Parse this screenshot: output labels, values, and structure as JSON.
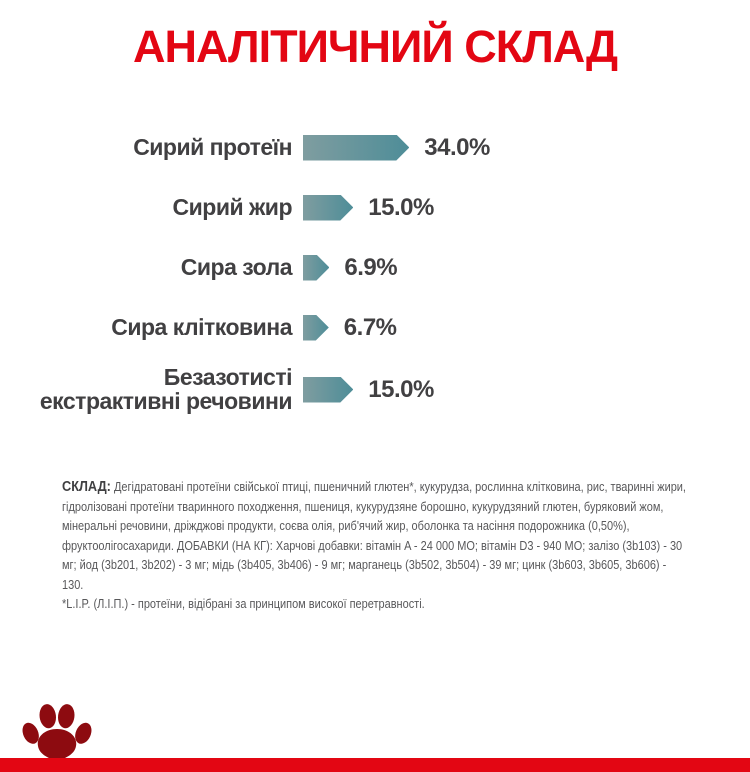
{
  "page": {
    "background": "#ffffff",
    "accent_red": "#e30613",
    "bar_gradient_start": "#7f9da0",
    "bar_gradient_end": "#4e8d98",
    "paw_color": "#8d0b10",
    "text_dark": "#414042",
    "text_gray": "#58585a"
  },
  "title": "АНАЛІТИЧНИЙ СКЛАД",
  "chart_data": {
    "type": "bar",
    "orientation": "horizontal",
    "title": "АНАЛІТИЧНИЙ СКЛАД",
    "xlabel": "",
    "ylabel": "",
    "unit": "%",
    "grid": false,
    "legend": "none",
    "categories": [
      "Сирий протеїн",
      "Сирий жир",
      "Сира зола",
      "Сира клітковина",
      "Безазотисті\nекстрактивні речовини"
    ],
    "values": [
      34.0,
      15.0,
      6.9,
      6.7,
      15.0
    ],
    "value_labels": [
      "34.0%",
      "15.0%",
      "6.9%",
      "6.7%",
      "15.0%"
    ],
    "bar_shape": "arrow-right",
    "bar_color": "teal-gradient"
  },
  "composition": {
    "heading": "СКЛАД:",
    "text": "Дегідратовані протеїни свійської птиці, пшеничний глютен*, кукурудза, рослинна клітковина, рис, тваринні жири, гідролізовані протеїни тваринного походження, пшениця, кукурудзяне борошно, кукурудзяний глютен, буряковий жом, мінеральні речовини, дріжджові продукти, соєва олія, риб'ячий жир, оболонка та насіння подорожника (0,50%), фруктоолігосахариди. ДОБАВКИ (НА КГ): Харчові добавки: вітамін A - 24 000 МО; вітамін D3 - 940 МО; залізо (3b103) - 30 мг; йод (3b201, 3b202) - 3 мг; мідь (3b405, 3b406) - 9 мг; марганець (3b502, 3b504) - 39 мг; цинк (3b603, 3b605, 3b606) - 130.",
    "footnote": "*L.I.P. (Л.І.П.) - протеїни, відібрані за принципом високої перетравності."
  },
  "footer": {
    "logo": "royal-canin-paw"
  }
}
